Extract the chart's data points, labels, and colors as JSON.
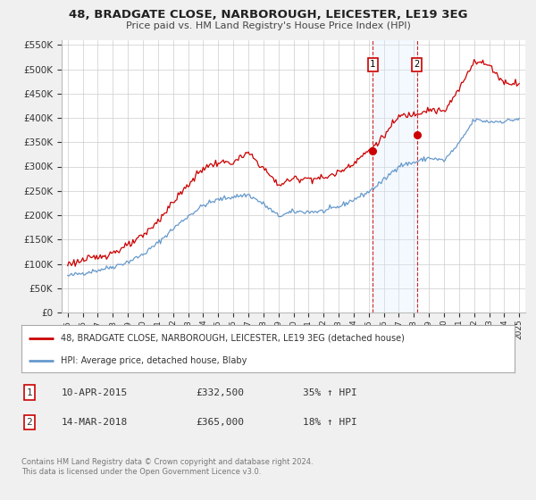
{
  "title": "48, BRADGATE CLOSE, NARBOROUGH, LEICESTER, LE19 3EG",
  "subtitle": "Price paid vs. HM Land Registry's House Price Index (HPI)",
  "legend_line1": "48, BRADGATE CLOSE, NARBOROUGH, LEICESTER, LE19 3EG (detached house)",
  "legend_line2": "HPI: Average price, detached house, Blaby",
  "annotation1_label": "1",
  "annotation1_date": "10-APR-2015",
  "annotation1_price": "£332,500",
  "annotation1_hpi": "35% ↑ HPI",
  "annotation2_label": "2",
  "annotation2_date": "14-MAR-2018",
  "annotation2_price": "£365,000",
  "annotation2_hpi": "18% ↑ HPI",
  "footnote1": "Contains HM Land Registry data © Crown copyright and database right 2024.",
  "footnote2": "This data is licensed under the Open Government Licence v3.0.",
  "sale1_year": 2015.27,
  "sale1_value": 332500,
  "sale2_year": 2018.19,
  "sale2_value": 365000,
  "red_color": "#cc0000",
  "blue_color": "#6699cc",
  "shaded_color": "#ddeeff",
  "background_color": "#f0f0f0",
  "plot_bg_color": "#ffffff",
  "grid_color": "#cccccc",
  "title_color": "#222222",
  "subtitle_color": "#444444",
  "text_color": "#333333",
  "footnote_color": "#777777",
  "ylim_min": 0,
  "ylim_max": 560000,
  "xlim_min": 1994.6,
  "xlim_max": 2025.4,
  "hpi_keypoints_x": [
    1995,
    1996,
    1997,
    1998,
    1999,
    2000,
    2001,
    2002,
    2003,
    2004,
    2005,
    2006,
    2007,
    2008,
    2009,
    2010,
    2011,
    2012,
    2013,
    2014,
    2015,
    2016,
    2017,
    2018,
    2019,
    2020,
    2021,
    2022,
    2023,
    2024,
    2025
  ],
  "hpi_keypoints_y": [
    75000,
    81000,
    87000,
    94000,
    104000,
    119000,
    143000,
    172000,
    198000,
    220000,
    232000,
    238000,
    242000,
    223000,
    198000,
    207000,
    207000,
    208000,
    217000,
    232000,
    248000,
    272000,
    302000,
    308000,
    318000,
    312000,
    347000,
    396000,
    392000,
    393000,
    398000
  ],
  "prop_keypoints_x": [
    1995,
    1996,
    1997,
    1998,
    1999,
    2000,
    2001,
    2002,
    2003,
    2004,
    2005,
    2006,
    2007,
    2008,
    2009,
    2010,
    2011,
    2012,
    2013,
    2014,
    2015,
    2016,
    2017,
    2018,
    2019,
    2020,
    2021,
    2022,
    2023,
    2024,
    2025
  ],
  "prop_keypoints_y": [
    100000,
    107000,
    114000,
    123000,
    137000,
    157000,
    188000,
    227000,
    262000,
    297000,
    308000,
    308000,
    328000,
    297000,
    262000,
    275000,
    276000,
    276000,
    288000,
    308000,
    332500,
    362000,
    403000,
    408000,
    418000,
    412000,
    458000,
    518000,
    508000,
    472000,
    472000
  ],
  "hpi_noise_seed": 42,
  "hpi_noise_scale": 2500,
  "prop_noise_seed": 123,
  "prop_noise_scale": 3500,
  "n_points": 361
}
